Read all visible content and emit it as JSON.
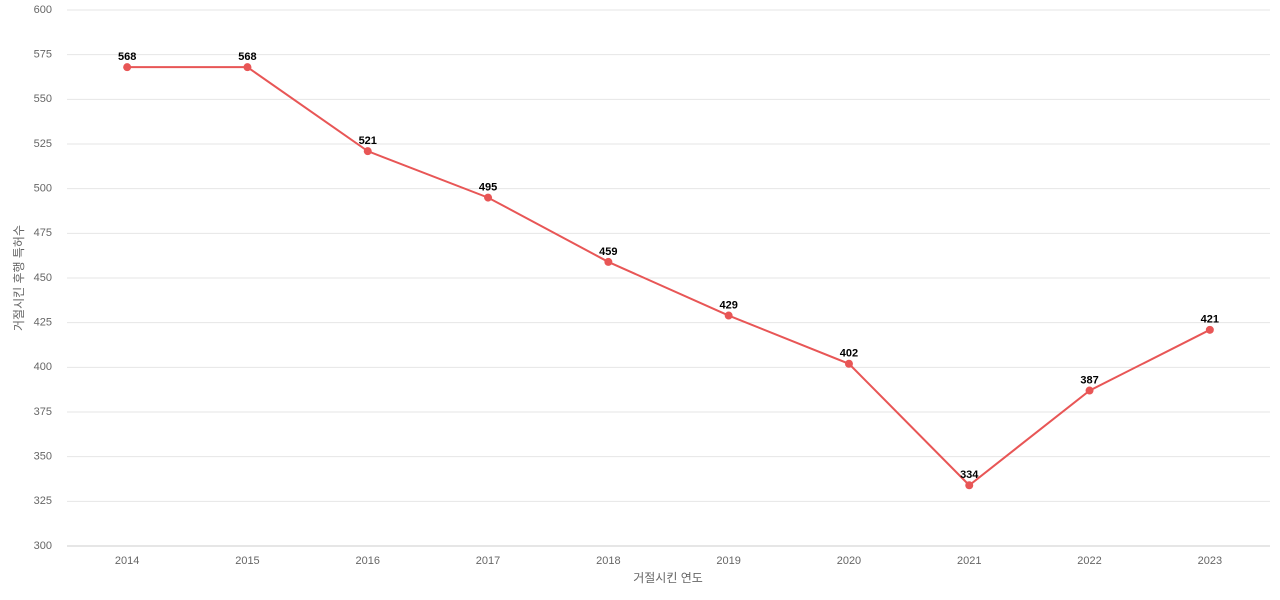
{
  "chart_data": {
    "type": "line",
    "x_label": "거절시킨 연도",
    "y_label": "거절시킨 후행 특허수",
    "categories": [
      "2014",
      "2015",
      "2016",
      "2017",
      "2018",
      "2019",
      "2020",
      "2021",
      "2022",
      "2023"
    ],
    "values": [
      568,
      568,
      521,
      495,
      459,
      429,
      402,
      334,
      387,
      421
    ],
    "color": "#e85656",
    "ylim": [
      300,
      600
    ],
    "yticks": [
      300,
      325,
      350,
      375,
      400,
      425,
      450,
      475,
      500,
      525,
      550,
      575,
      600
    ],
    "grid": true
  }
}
